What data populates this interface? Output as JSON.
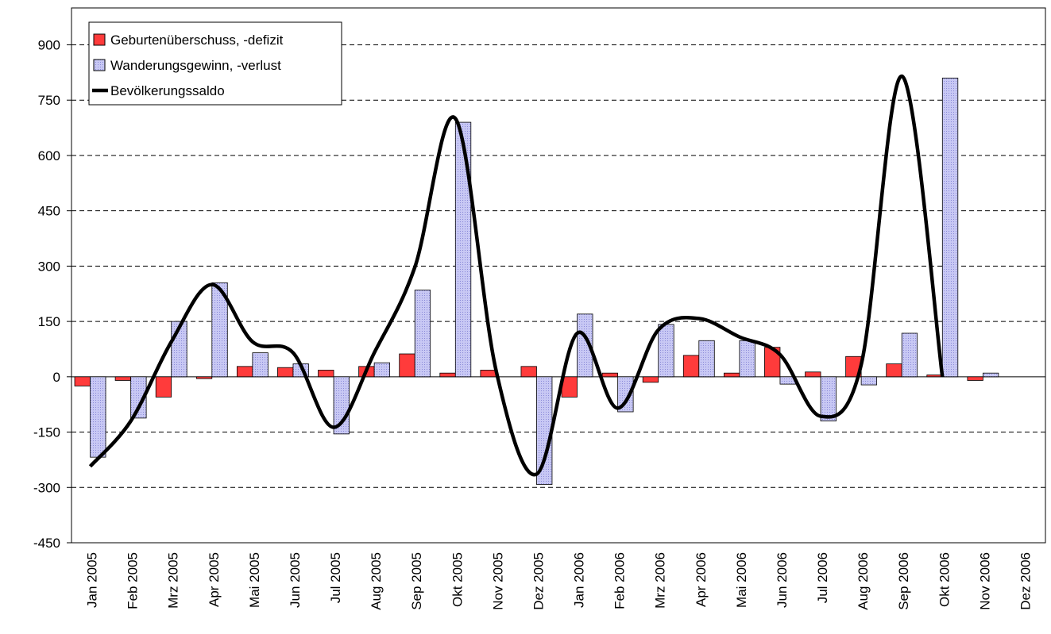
{
  "chart_data": {
    "type": "bar-line",
    "categories": [
      "Jan 2005",
      "Feb 2005",
      "Mrz 2005",
      "Apr 2005",
      "Mai 2005",
      "Jun 2005",
      "Jul 2005",
      "Aug 2005",
      "Sep 2005",
      "Okt 2005",
      "Nov 2005",
      "Dez 2005",
      "Jan 2006",
      "Feb 2006",
      "Mrz 2006",
      "Apr 2006",
      "Mai 2006",
      "Jun 2006",
      "Jul 2006",
      "Aug 2006",
      "Sep 2006",
      "Okt 2006",
      "Nov 2006",
      "Dez 2006"
    ],
    "series": [
      {
        "name": "Geburtenüberschuss, -defizit",
        "type": "bar",
        "color": "#ff3b3b",
        "values": [
          -25,
          -10,
          -55,
          -5,
          28,
          25,
          18,
          28,
          62,
          10,
          18,
          28,
          -55,
          10,
          -15,
          58,
          10,
          80,
          13,
          55,
          35,
          5,
          -10,
          null
        ]
      },
      {
        "name": "Wanderungsgewinn, -verlust",
        "type": "bar",
        "color": "#c8c8f4",
        "values": [
          -218,
          -112,
          150,
          255,
          65,
          35,
          -155,
          38,
          235,
          690,
          null,
          -292,
          170,
          -95,
          142,
          98,
          98,
          -20,
          -120,
          -22,
          118,
          810,
          10,
          null
        ]
      },
      {
        "name": "Bevölkerungssaldo",
        "type": "line",
        "color": "#000000",
        "values": [
          -243,
          -120,
          95,
          250,
          95,
          65,
          -137,
          65,
          297,
          700,
          18,
          -264,
          118,
          -85,
          127,
          158,
          108,
          60,
          -107,
          33,
          815,
          0,
          null,
          null
        ]
      }
    ],
    "ylim": [
      -450,
      1000
    ],
    "yticks": [
      -450,
      -300,
      -150,
      0,
      150,
      300,
      450,
      600,
      750,
      900
    ],
    "grid": true,
    "legend": "top-left"
  }
}
